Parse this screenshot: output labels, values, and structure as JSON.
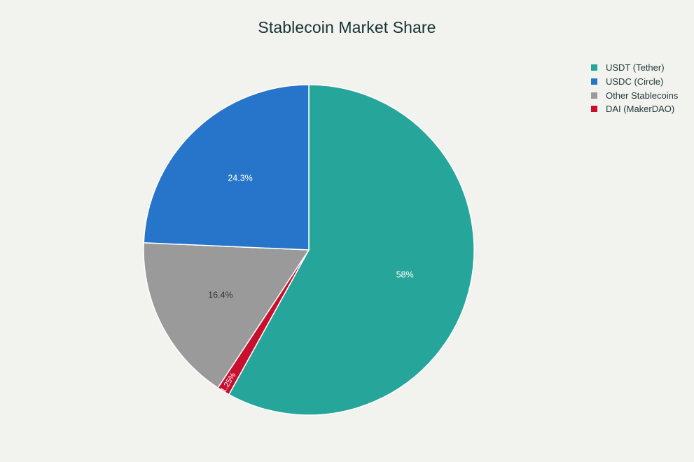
{
  "chart_data": {
    "type": "pie",
    "title": "Stablecoin Market Share",
    "legend_position": "top-right",
    "slices": [
      {
        "label": "USDT (Tether)",
        "value": 58,
        "display": "58%",
        "color": "#26a69a",
        "text_color": "#ffffff"
      },
      {
        "label": "DAI (MakerDAO)",
        "value": 1.25,
        "display": "1.25%",
        "color": "#c8102e",
        "text_color": "#ffffff"
      },
      {
        "label": "Other Stablecoins",
        "value": 16.4,
        "display": "16.4%",
        "color": "#9a9a9a",
        "text_color": "#333333"
      },
      {
        "label": "USDC (Circle)",
        "value": 24.3,
        "display": "24.3%",
        "color": "#2775ca",
        "text_color": "#ffffff"
      }
    ],
    "legend_order": [
      "USDT (Tether)",
      "USDC (Circle)",
      "Other Stablecoins",
      "DAI (MakerDAO)"
    ]
  }
}
